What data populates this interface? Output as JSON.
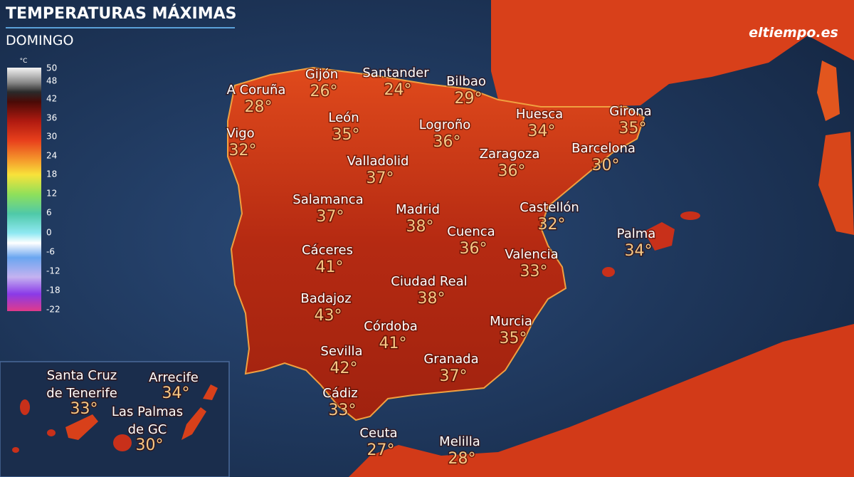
{
  "header": {
    "title": "TEMPERATURAS MÁXIMAS",
    "subtitle": "DOMINGO",
    "brand": "eltiempo.es"
  },
  "legend": {
    "unit": "°C",
    "ticks": [
      50,
      48,
      42,
      36,
      30,
      24,
      18,
      12,
      6,
      0,
      -6,
      -12,
      -18,
      -22
    ]
  },
  "cities": [
    {
      "name": "A Coruña",
      "temp": "28°"
    },
    {
      "name": "Gijón",
      "temp": "26°"
    },
    {
      "name": "Santander",
      "temp": "24°"
    },
    {
      "name": "Bilbao",
      "temp": "29°"
    },
    {
      "name": "León",
      "temp": "35°"
    },
    {
      "name": "Logroño",
      "temp": "36°"
    },
    {
      "name": "Huesca",
      "temp": "34°"
    },
    {
      "name": "Girona",
      "temp": "35°"
    },
    {
      "name": "Vigo",
      "temp": "32°"
    },
    {
      "name": "Valladolid",
      "temp": "37°"
    },
    {
      "name": "Zaragoza",
      "temp": "36°"
    },
    {
      "name": "Barcelona",
      "temp": "30°"
    },
    {
      "name": "Salamanca",
      "temp": "37°"
    },
    {
      "name": "Madrid",
      "temp": "38°"
    },
    {
      "name": "Castellón",
      "temp": "32°"
    },
    {
      "name": "Cuenca",
      "temp": "36°"
    },
    {
      "name": "Palma",
      "temp": "34°"
    },
    {
      "name": "Cáceres",
      "temp": "41°"
    },
    {
      "name": "Valencia",
      "temp": "33°"
    },
    {
      "name": "Ciudad Real",
      "temp": "38°"
    },
    {
      "name": "Badajoz",
      "temp": "43°"
    },
    {
      "name": "Córdoba",
      "temp": "41°"
    },
    {
      "name": "Murcia",
      "temp": "35°"
    },
    {
      "name": "Sevilla",
      "temp": "42°"
    },
    {
      "name": "Granada",
      "temp": "37°"
    },
    {
      "name": "Cádiz",
      "temp": "33°"
    },
    {
      "name": "Ceuta",
      "temp": "27°"
    },
    {
      "name": "Melilla",
      "temp": "28°"
    }
  ],
  "canarias": [
    {
      "name": [
        "Santa Cruz",
        "de Tenerife"
      ],
      "temp": "33°"
    },
    {
      "name": [
        "Arrecife"
      ],
      "temp": "34°"
    },
    {
      "name": [
        "Las Palmas",
        "de GC"
      ],
      "temp": "30°"
    }
  ]
}
